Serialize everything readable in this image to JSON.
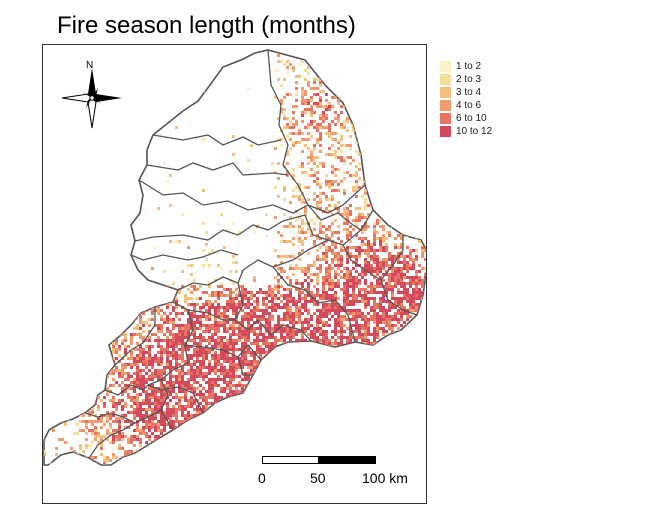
{
  "title": "Fire season length (months)",
  "legend": {
    "items": [
      {
        "label": "1 to 2",
        "color": "#fbf1c6"
      },
      {
        "label": "2 to 3",
        "color": "#f8dc9a"
      },
      {
        "label": "3 to 4",
        "color": "#f5c07e"
      },
      {
        "label": "4 to 6",
        "color": "#f09a6d"
      },
      {
        "label": "6 to 10",
        "color": "#e57463"
      },
      {
        "label": "10 to 12",
        "color": "#d44a5d"
      }
    ]
  },
  "north_arrow": {
    "label": "N"
  },
  "scale_bar": {
    "labels": [
      "0",
      "50",
      "100 km"
    ]
  },
  "colors": {
    "boundary": "#555555",
    "frame": "#333333"
  }
}
